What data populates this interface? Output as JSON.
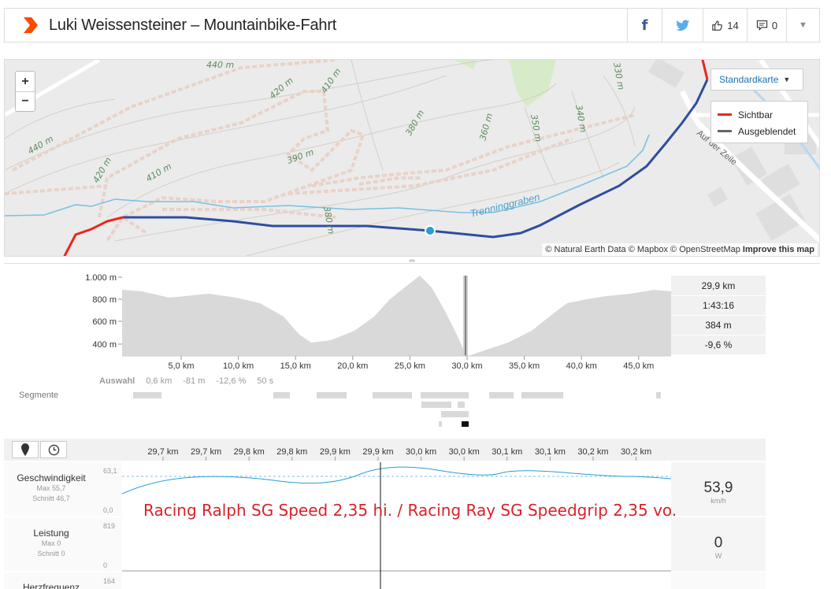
{
  "header": {
    "title": "Luki Weissensteiner – Mountainbike-Fahrt",
    "kudos_count": "14",
    "comment_count": "0",
    "brand_color": "#fc4c02"
  },
  "map": {
    "zoom_in": "+",
    "zoom_out": "−",
    "map_type": "Standardkarte",
    "legend": [
      {
        "label": "Sichtbar",
        "color": "#e8271c"
      },
      {
        "label": "Ausgeblendet",
        "color": "#666666"
      }
    ],
    "attribution_text": "© Natural Earth Data © Mapbox © OpenStreetMap",
    "attribution_link": "Improve this map",
    "contour_labels": [
      "440 m",
      "420 m",
      "410 m",
      "440 m",
      "420 m",
      "410 m",
      "390 m",
      "380 m",
      "360 m",
      "350 m",
      "340 m",
      "330 m",
      "380 m"
    ],
    "stream_label": "Trenninggraben",
    "street_label": "Auf der Zeile",
    "route_color": "#2e4e9e"
  },
  "elevation": {
    "y_ticks": [
      "1.000 m",
      "800 m",
      "600 m",
      "400 m"
    ],
    "x_ticks": [
      "5,0 km",
      "10,0 km",
      "15,0 km",
      "20,0 km",
      "25,0 km",
      "30,0 km",
      "35,0 km",
      "40,0 km",
      "45,0 km"
    ],
    "stats": [
      "29,9 km",
      "1:43:16",
      "384 m",
      "-9,6 %"
    ],
    "selection": {
      "label": "Auswahl",
      "values": [
        "0,6 km",
        "-81 m",
        "-12,6 %",
        "50 s"
      ]
    },
    "segments_label": "Segmente"
  },
  "analysis": {
    "x_ticks": [
      "29,7 km",
      "29,7 km",
      "29,8 km",
      "29,8 km",
      "29,9 km",
      "29,9 km",
      "30,0 km",
      "30,0 km",
      "30,1 km",
      "30,1 km",
      "30,2 km",
      "30,2 km"
    ],
    "rows": [
      {
        "name": "Geschwindigkeit",
        "max": "Max 55,7",
        "avg": "Schnitt 46,7",
        "ymax": "63,1",
        "ymin": "0,0",
        "value": "53,9",
        "unit": "km/h"
      },
      {
        "name": "Leistung",
        "max": "Max 0",
        "avg": "Schnitt 0",
        "ymax": "819",
        "ymin": "0",
        "value": "0",
        "unit": "W"
      },
      {
        "name": "Herzfrequenz",
        "ymax": "164"
      }
    ],
    "overlay_text": "Racing Ralph SG Speed 2,35 hi. / Racing Ray SG Speedgrip 2,35 vo."
  }
}
